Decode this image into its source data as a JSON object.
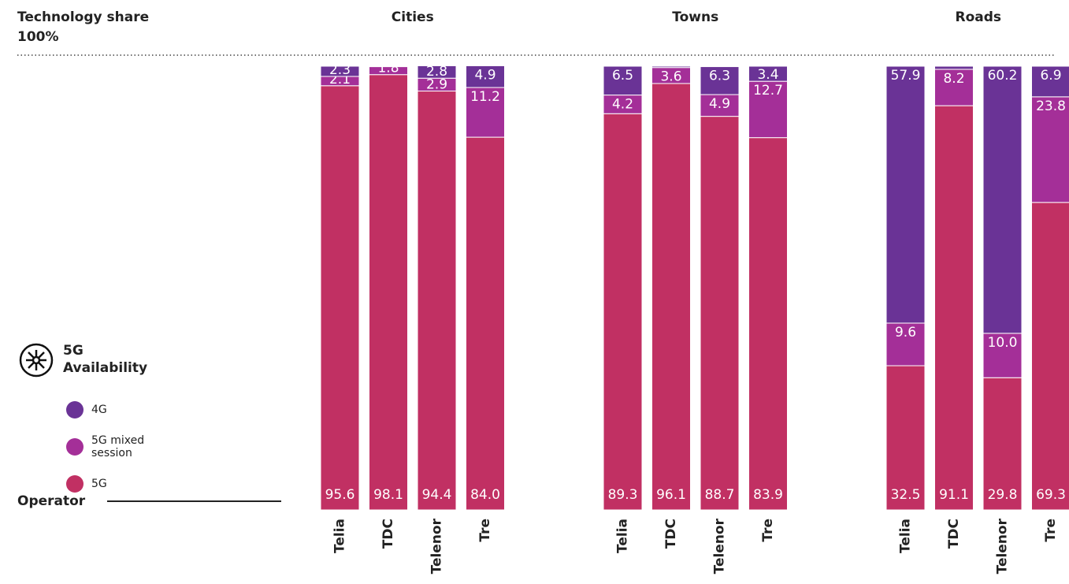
{
  "chart_data": {
    "type": "bar",
    "stacked": true,
    "title": "Technology share",
    "xlabel": "Operator",
    "legend_title": "5G Availability",
    "ylim": [
      0,
      100
    ],
    "yticks": [
      {
        "value": 100,
        "label": "100%"
      }
    ],
    "series": [
      {
        "name": "5G",
        "color": "#c13063"
      },
      {
        "name": "5G mixed session",
        "color": "#a42f98"
      },
      {
        "name": "4G",
        "color": "#6a3396"
      }
    ],
    "panels": [
      {
        "title": "Cities",
        "categories": [
          "Telia",
          "TDC",
          "Telenor",
          "Tre"
        ],
        "series": [
          {
            "values": [
              95.6,
              98.1,
              94.4,
              84.0
            ],
            "value_labels": [
              "95.6",
              "98.1",
              "94.4",
              "84.0"
            ]
          },
          {
            "values": [
              2.1,
              1.8,
              2.9,
              11.2
            ],
            "value_labels": [
              "2.1",
              "1.8",
              "2.9",
              "11.2"
            ]
          },
          {
            "values": [
              2.3,
              0.1,
              2.8,
              4.9
            ],
            "value_labels": [
              "2.3",
              null,
              "2.8",
              "4.9"
            ]
          }
        ]
      },
      {
        "title": "Towns",
        "categories": [
          "Telia",
          "TDC",
          "Telenor",
          "Tre"
        ],
        "series": [
          {
            "values": [
              89.3,
              96.1,
              88.7,
              83.9
            ],
            "value_labels": [
              "89.3",
              "96.1",
              "88.7",
              "83.9"
            ]
          },
          {
            "values": [
              4.2,
              3.6,
              4.9,
              12.7
            ],
            "value_labels": [
              "4.2",
              "3.6",
              "4.9",
              "12.7"
            ]
          },
          {
            "values": [
              6.5,
              0.3,
              6.3,
              3.4
            ],
            "value_labels": [
              "6.5",
              null,
              "6.3",
              "3.4"
            ]
          }
        ]
      },
      {
        "title": "Roads",
        "categories": [
          "Telia",
          "TDC",
          "Telenor",
          "Tre"
        ],
        "series": [
          {
            "values": [
              32.5,
              91.1,
              29.8,
              69.3
            ],
            "value_labels": [
              "32.5",
              "91.1",
              "29.8",
              "69.3"
            ]
          },
          {
            "values": [
              9.6,
              8.2,
              10.0,
              23.8
            ],
            "value_labels": [
              "9.6",
              "8.2",
              "10.0",
              "23.8"
            ]
          },
          {
            "values": [
              57.9,
              0.7,
              60.2,
              6.9
            ],
            "value_labels": [
              "57.9",
              null,
              "60.2",
              "6.9"
            ]
          }
        ]
      }
    ]
  }
}
